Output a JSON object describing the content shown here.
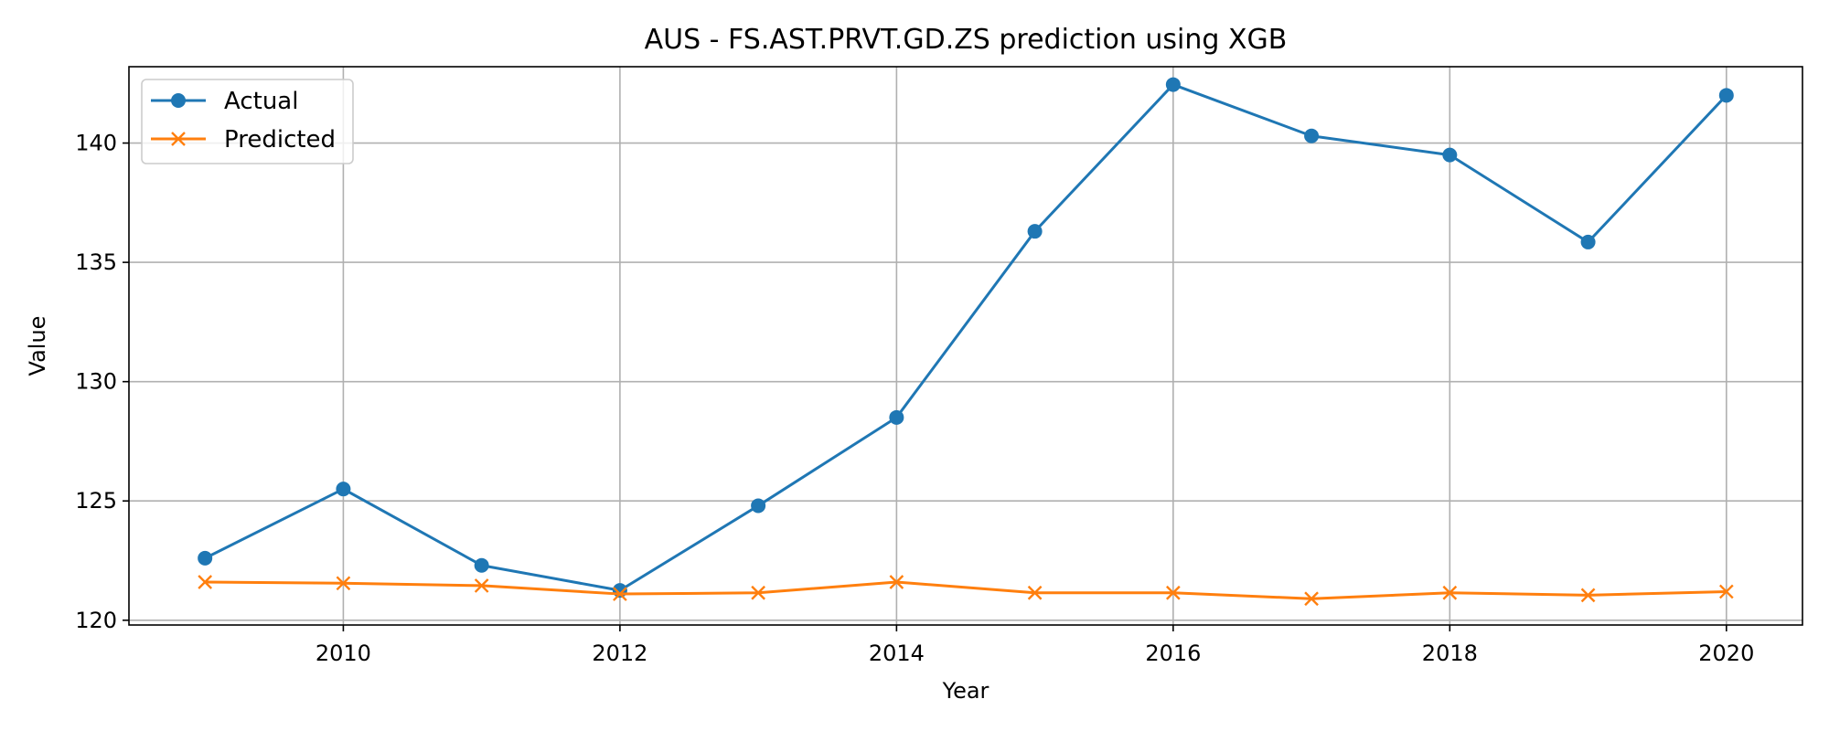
{
  "chart_data": {
    "type": "line",
    "title": "AUS - FS.AST.PRVT.GD.ZS prediction using XGB",
    "xlabel": "Year",
    "ylabel": "Value",
    "x": [
      2009,
      2010,
      2011,
      2012,
      2013,
      2014,
      2015,
      2016,
      2017,
      2018,
      2019,
      2020
    ],
    "xlim": [
      2008.45,
      2020.55
    ],
    "ylim": [
      119.8,
      143.2
    ],
    "xticks": [
      2010,
      2012,
      2014,
      2016,
      2018,
      2020
    ],
    "xtick_labels": [
      "2010",
      "2012",
      "2014",
      "2016",
      "2018",
      "2020"
    ],
    "yticks": [
      120,
      125,
      130,
      135,
      140
    ],
    "ytick_labels": [
      "120",
      "125",
      "130",
      "135",
      "140"
    ],
    "grid": true,
    "legend_position": "top-left",
    "series": [
      {
        "name": "Actual",
        "color": "#1f77b4",
        "marker": "circle",
        "values": [
          122.6,
          125.5,
          122.3,
          121.25,
          124.8,
          128.5,
          136.3,
          142.45,
          140.3,
          139.5,
          135.85,
          142.0
        ]
      },
      {
        "name": "Predicted",
        "color": "#ff7f0e",
        "marker": "x",
        "values": [
          121.6,
          121.55,
          121.45,
          121.1,
          121.15,
          121.6,
          121.15,
          121.15,
          120.9,
          121.15,
          121.05,
          121.2
        ]
      }
    ]
  }
}
